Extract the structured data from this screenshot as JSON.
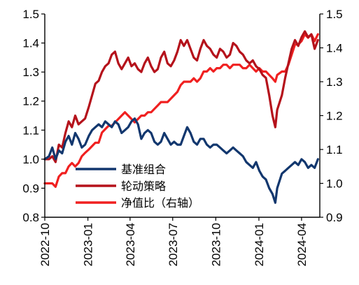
{
  "chart_data": {
    "type": "line",
    "x_type": "date",
    "x_range": [
      "2022-10-01",
      "2024-05-10"
    ],
    "x_ticks": [
      "2022-10",
      "2023-01",
      "2023-04",
      "2023-07",
      "2023-10",
      "2024-01",
      "2024-04"
    ],
    "y_left": {
      "range": [
        0.8,
        1.5
      ],
      "ticks": [
        "0.8",
        "0.9",
        "1.0",
        "1.1",
        "1.2",
        "1.3",
        "1.4",
        "1.5"
      ]
    },
    "y_right": {
      "range": [
        0.9,
        1.5
      ],
      "ticks": [
        "0.9",
        "1.0",
        "1.1",
        "1.2",
        "1.3",
        "1.4",
        "1.5"
      ]
    },
    "grid": false,
    "legend_position": "lower-left",
    "series": [
      {
        "name": "基准组合",
        "color": "#12376e",
        "axis": "left",
        "points": [
          [
            "2022-10-01",
            1.0
          ],
          [
            "2022-10-10",
            1.01
          ],
          [
            "2022-10-17",
            1.04
          ],
          [
            "2022-10-24",
            1.0
          ],
          [
            "2022-10-31",
            1.03
          ],
          [
            "2022-11-07",
            1.02
          ],
          [
            "2022-11-14",
            1.06
          ],
          [
            "2022-11-21",
            1.08
          ],
          [
            "2022-11-28",
            1.05
          ],
          [
            "2022-12-05",
            1.09
          ],
          [
            "2022-12-12",
            1.07
          ],
          [
            "2022-12-19",
            1.04
          ],
          [
            "2022-12-26",
            1.05
          ],
          [
            "2023-01-03",
            1.08
          ],
          [
            "2023-01-10",
            1.1
          ],
          [
            "2023-01-17",
            1.11
          ],
          [
            "2023-01-24",
            1.12
          ],
          [
            "2023-01-31",
            1.11
          ],
          [
            "2023-02-07",
            1.13
          ],
          [
            "2023-02-14",
            1.12
          ],
          [
            "2023-02-21",
            1.11
          ],
          [
            "2023-02-28",
            1.13
          ],
          [
            "2023-03-07",
            1.12
          ],
          [
            "2023-03-14",
            1.09
          ],
          [
            "2023-03-21",
            1.1
          ],
          [
            "2023-03-28",
            1.11
          ],
          [
            "2023-04-04",
            1.13
          ],
          [
            "2023-04-11",
            1.14
          ],
          [
            "2023-04-18",
            1.12
          ],
          [
            "2023-04-25",
            1.07
          ],
          [
            "2023-05-02",
            1.09
          ],
          [
            "2023-05-09",
            1.1
          ],
          [
            "2023-05-16",
            1.09
          ],
          [
            "2023-05-23",
            1.06
          ],
          [
            "2023-05-30",
            1.05
          ],
          [
            "2023-06-06",
            1.06
          ],
          [
            "2023-06-13",
            1.09
          ],
          [
            "2023-06-20",
            1.07
          ],
          [
            "2023-06-27",
            1.05
          ],
          [
            "2023-07-04",
            1.06
          ],
          [
            "2023-07-11",
            1.05
          ],
          [
            "2023-07-18",
            1.05
          ],
          [
            "2023-07-25",
            1.08
          ],
          [
            "2023-08-01",
            1.11
          ],
          [
            "2023-08-08",
            1.09
          ],
          [
            "2023-08-15",
            1.06
          ],
          [
            "2023-08-22",
            1.05
          ],
          [
            "2023-08-29",
            1.07
          ],
          [
            "2023-09-05",
            1.07
          ],
          [
            "2023-09-12",
            1.05
          ],
          [
            "2023-09-19",
            1.04
          ],
          [
            "2023-09-26",
            1.05
          ],
          [
            "2023-10-03",
            1.05
          ],
          [
            "2023-10-10",
            1.04
          ],
          [
            "2023-10-17",
            1.03
          ],
          [
            "2023-10-24",
            1.02
          ],
          [
            "2023-10-31",
            1.03
          ],
          [
            "2023-11-07",
            1.04
          ],
          [
            "2023-11-14",
            1.03
          ],
          [
            "2023-11-21",
            1.02
          ],
          [
            "2023-11-28",
            1.01
          ],
          [
            "2023-12-05",
            0.99
          ],
          [
            "2023-12-12",
            0.98
          ],
          [
            "2023-12-19",
            0.97
          ],
          [
            "2023-12-26",
            0.99
          ],
          [
            "2024-01-02",
            0.96
          ],
          [
            "2024-01-09",
            0.94
          ],
          [
            "2024-01-16",
            0.93
          ],
          [
            "2024-01-23",
            0.9
          ],
          [
            "2024-01-30",
            0.88
          ],
          [
            "2024-02-05",
            0.85
          ],
          [
            "2024-02-09",
            0.9
          ],
          [
            "2024-02-19",
            0.95
          ],
          [
            "2024-02-26",
            0.96
          ],
          [
            "2024-03-04",
            0.97
          ],
          [
            "2024-03-11",
            0.98
          ],
          [
            "2024-03-18",
            0.99
          ],
          [
            "2024-03-25",
            0.98
          ],
          [
            "2024-04-01",
            1.0
          ],
          [
            "2024-04-08",
            0.99
          ],
          [
            "2024-04-15",
            0.97
          ],
          [
            "2024-04-22",
            0.98
          ],
          [
            "2024-04-29",
            0.97
          ],
          [
            "2024-05-06",
            1.0
          ]
        ]
      },
      {
        "name": "轮动策略",
        "color": "#b5121b",
        "axis": "left",
        "points": [
          [
            "2022-10-01",
            1.0
          ],
          [
            "2022-10-10",
            1.0
          ],
          [
            "2022-10-17",
            1.01
          ],
          [
            "2022-10-24",
            0.99
          ],
          [
            "2022-10-31",
            1.05
          ],
          [
            "2022-11-07",
            1.04
          ],
          [
            "2022-11-14",
            1.09
          ],
          [
            "2022-11-21",
            1.13
          ],
          [
            "2022-11-28",
            1.11
          ],
          [
            "2022-12-05",
            1.15
          ],
          [
            "2022-12-12",
            1.12
          ],
          [
            "2022-12-19",
            1.13
          ],
          [
            "2022-12-26",
            1.14
          ],
          [
            "2023-01-03",
            1.18
          ],
          [
            "2023-01-10",
            1.22
          ],
          [
            "2023-01-17",
            1.26
          ],
          [
            "2023-01-24",
            1.27
          ],
          [
            "2023-01-31",
            1.3
          ],
          [
            "2023-02-07",
            1.32
          ],
          [
            "2023-02-14",
            1.33
          ],
          [
            "2023-02-21",
            1.36
          ],
          [
            "2023-02-28",
            1.37
          ],
          [
            "2023-03-07",
            1.33
          ],
          [
            "2023-03-14",
            1.31
          ],
          [
            "2023-03-21",
            1.33
          ],
          [
            "2023-03-28",
            1.35
          ],
          [
            "2023-04-04",
            1.32
          ],
          [
            "2023-04-11",
            1.33
          ],
          [
            "2023-04-18",
            1.31
          ],
          [
            "2023-04-25",
            1.3
          ],
          [
            "2023-05-02",
            1.33
          ],
          [
            "2023-05-09",
            1.35
          ],
          [
            "2023-05-16",
            1.32
          ],
          [
            "2023-05-23",
            1.3
          ],
          [
            "2023-05-30",
            1.31
          ],
          [
            "2023-06-06",
            1.35
          ],
          [
            "2023-06-13",
            1.37
          ],
          [
            "2023-06-20",
            1.33
          ],
          [
            "2023-06-27",
            1.32
          ],
          [
            "2023-07-04",
            1.34
          ],
          [
            "2023-07-11",
            1.37
          ],
          [
            "2023-07-18",
            1.41
          ],
          [
            "2023-07-25",
            1.39
          ],
          [
            "2023-08-01",
            1.41
          ],
          [
            "2023-08-08",
            1.38
          ],
          [
            "2023-08-15",
            1.35
          ],
          [
            "2023-08-22",
            1.34
          ],
          [
            "2023-08-29",
            1.38
          ],
          [
            "2023-09-05",
            1.41
          ],
          [
            "2023-09-12",
            1.39
          ],
          [
            "2023-09-19",
            1.38
          ],
          [
            "2023-09-26",
            1.36
          ],
          [
            "2023-10-03",
            1.35
          ],
          [
            "2023-10-10",
            1.38
          ],
          [
            "2023-10-17",
            1.37
          ],
          [
            "2023-10-24",
            1.35
          ],
          [
            "2023-10-31",
            1.36
          ],
          [
            "2023-11-07",
            1.4
          ],
          [
            "2023-11-14",
            1.39
          ],
          [
            "2023-11-21",
            1.37
          ],
          [
            "2023-11-28",
            1.36
          ],
          [
            "2023-12-05",
            1.34
          ],
          [
            "2023-12-12",
            1.33
          ],
          [
            "2023-12-19",
            1.34
          ],
          [
            "2023-12-26",
            1.32
          ],
          [
            "2024-01-02",
            1.31
          ],
          [
            "2024-01-09",
            1.29
          ],
          [
            "2024-01-16",
            1.28
          ],
          [
            "2024-01-23",
            1.22
          ],
          [
            "2024-01-30",
            1.15
          ],
          [
            "2024-02-05",
            1.11
          ],
          [
            "2024-02-09",
            1.17
          ],
          [
            "2024-02-19",
            1.22
          ],
          [
            "2024-02-26",
            1.28
          ],
          [
            "2024-03-04",
            1.33
          ],
          [
            "2024-03-11",
            1.38
          ],
          [
            "2024-03-18",
            1.41
          ],
          [
            "2024-03-25",
            1.39
          ],
          [
            "2024-04-01",
            1.42
          ],
          [
            "2024-04-08",
            1.44
          ],
          [
            "2024-04-15",
            1.42
          ],
          [
            "2024-04-22",
            1.43
          ],
          [
            "2024-04-29",
            1.38
          ],
          [
            "2024-05-06",
            1.41
          ]
        ]
      },
      {
        "name": "净值比（右轴）",
        "color": "#f02020",
        "axis": "right",
        "points": [
          [
            "2022-10-01",
            1.0
          ],
          [
            "2022-10-10",
            1.0
          ],
          [
            "2022-10-17",
            1.0
          ],
          [
            "2022-10-24",
            0.99
          ],
          [
            "2022-10-31",
            1.02
          ],
          [
            "2022-11-07",
            1.03
          ],
          [
            "2022-11-14",
            1.03
          ],
          [
            "2022-11-21",
            1.05
          ],
          [
            "2022-11-28",
            1.06
          ],
          [
            "2022-12-05",
            1.05
          ],
          [
            "2022-12-12",
            1.06
          ],
          [
            "2022-12-19",
            1.08
          ],
          [
            "2022-12-26",
            1.09
          ],
          [
            "2023-01-03",
            1.1
          ],
          [
            "2023-01-10",
            1.11
          ],
          [
            "2023-01-17",
            1.12
          ],
          [
            "2023-01-24",
            1.12
          ],
          [
            "2023-01-31",
            1.15
          ],
          [
            "2023-02-07",
            1.16
          ],
          [
            "2023-02-14",
            1.17
          ],
          [
            "2023-02-21",
            1.17
          ],
          [
            "2023-02-28",
            1.18
          ],
          [
            "2023-03-07",
            1.19
          ],
          [
            "2023-03-14",
            1.2
          ],
          [
            "2023-03-21",
            1.21
          ],
          [
            "2023-03-28",
            1.2
          ],
          [
            "2023-04-04",
            1.19
          ],
          [
            "2023-04-11",
            1.18
          ],
          [
            "2023-04-18",
            1.19
          ],
          [
            "2023-04-25",
            1.2
          ],
          [
            "2023-05-02",
            1.2
          ],
          [
            "2023-05-09",
            1.21
          ],
          [
            "2023-05-16",
            1.21
          ],
          [
            "2023-05-23",
            1.22
          ],
          [
            "2023-05-30",
            1.23
          ],
          [
            "2023-06-06",
            1.24
          ],
          [
            "2023-06-13",
            1.24
          ],
          [
            "2023-06-20",
            1.24
          ],
          [
            "2023-06-27",
            1.25
          ],
          [
            "2023-07-04",
            1.26
          ],
          [
            "2023-07-11",
            1.27
          ],
          [
            "2023-07-18",
            1.29
          ],
          [
            "2023-07-25",
            1.3
          ],
          [
            "2023-08-01",
            1.3
          ],
          [
            "2023-08-08",
            1.3
          ],
          [
            "2023-08-15",
            1.31
          ],
          [
            "2023-08-22",
            1.3
          ],
          [
            "2023-08-29",
            1.31
          ],
          [
            "2023-09-05",
            1.33
          ],
          [
            "2023-09-12",
            1.33
          ],
          [
            "2023-09-19",
            1.34
          ],
          [
            "2023-09-26",
            1.33
          ],
          [
            "2023-10-03",
            1.34
          ],
          [
            "2023-10-10",
            1.34
          ],
          [
            "2023-10-17",
            1.35
          ],
          [
            "2023-10-24",
            1.35
          ],
          [
            "2023-10-31",
            1.34
          ],
          [
            "2023-11-07",
            1.35
          ],
          [
            "2023-11-14",
            1.35
          ],
          [
            "2023-11-21",
            1.35
          ],
          [
            "2023-11-28",
            1.34
          ],
          [
            "2023-12-05",
            1.34
          ],
          [
            "2023-12-12",
            1.35
          ],
          [
            "2023-12-19",
            1.34
          ],
          [
            "2023-12-26",
            1.33
          ],
          [
            "2024-01-02",
            1.34
          ],
          [
            "2024-01-09",
            1.33
          ],
          [
            "2024-01-16",
            1.33
          ],
          [
            "2024-01-23",
            1.32
          ],
          [
            "2024-01-30",
            1.31
          ],
          [
            "2024-02-05",
            1.3
          ],
          [
            "2024-02-09",
            1.32
          ],
          [
            "2024-02-19",
            1.33
          ],
          [
            "2024-02-26",
            1.33
          ],
          [
            "2024-03-04",
            1.35
          ],
          [
            "2024-03-11",
            1.38
          ],
          [
            "2024-03-18",
            1.41
          ],
          [
            "2024-03-25",
            1.41
          ],
          [
            "2024-04-01",
            1.42
          ],
          [
            "2024-04-08",
            1.44
          ],
          [
            "2024-04-15",
            1.43
          ],
          [
            "2024-04-22",
            1.44
          ],
          [
            "2024-04-29",
            1.42
          ],
          [
            "2024-05-06",
            1.44
          ]
        ]
      }
    ]
  }
}
